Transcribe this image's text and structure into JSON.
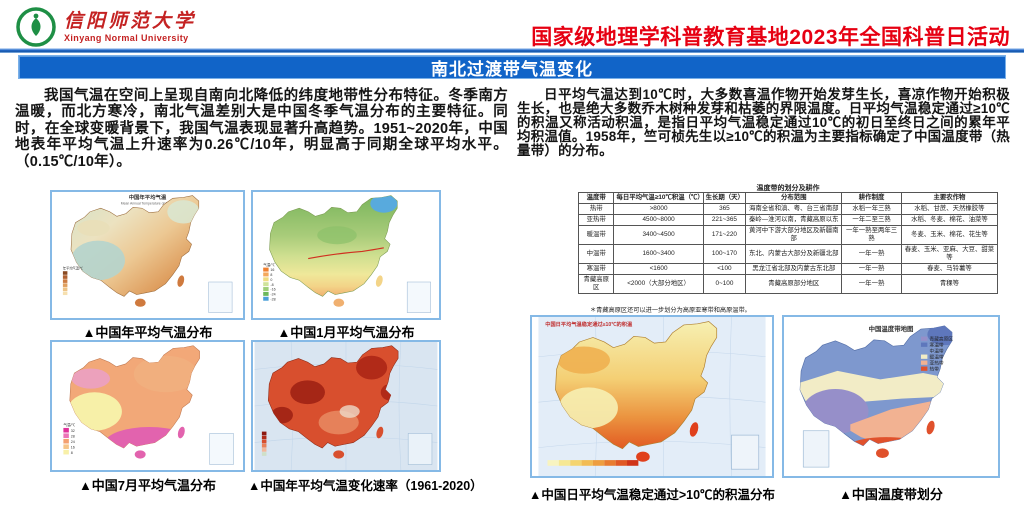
{
  "header": {
    "university_cn": "信阳师范大学",
    "university_en": "Xinyang Normal University",
    "event_title": "国家级地理学科普教育基地2023年全国科普日活动"
  },
  "title_bar": {
    "title": "南北过渡带气温变化"
  },
  "colors": {
    "accent_blue": "#1164c8",
    "brand_red": "#e60012",
    "logo_green": "#1e8f45",
    "map_border_blue": "#85b9e6"
  },
  "left_column": {
    "paragraph": "我国气温在空间上呈现自南向北降低的纬度地带性分布特征。冬季南方温暖，而北方寒冷，南北气温差别大是中国冬季气温分布的主要特征。同时，在全球变暖背景下，我国气温表现显著升高趋势。1951~2020年，中国地表年平均气温上升速率为0.26℃/10年，明显高于同期全球平均水平。（0.15℃/10年）。"
  },
  "right_column": {
    "paragraph": "日平均气温达到10℃时，大多数喜温作物开始发芽生长，喜凉作物开始积极生长，也是绝大多数乔木树种发芽和枯萎的界限温度。日平均气温稳定通过≥10℃的积温又称活动积温，是指日平均气温稳定通过10℃的初日至终日之间的累年平均积温值。1958年，竺可桢先生以≥10℃的积温为主要指标确定了中国温度带（热量带）的分布。"
  },
  "maps": {
    "annual": {
      "title_cn": "中国年平均气温",
      "title_en": "Mean Annual Temperature of China",
      "caption": "▲中国年平均气温分布",
      "legend_title": "年平均气温/℃"
    },
    "january": {
      "caption": "▲中国1月平均气温分布",
      "legend_title": "气温/℃",
      "legend_values": [
        "16",
        "8",
        "0",
        "-8",
        "-16",
        "-24",
        "-28"
      ],
      "legend_colors": [
        "#f08030",
        "#f4a85c",
        "#f0dc82",
        "#cfe39a",
        "#9ecf78",
        "#6cb85c",
        "#4ba0d8"
      ]
    },
    "july": {
      "caption": "▲中国7月平均气温分布",
      "legend_title": "气温/℃",
      "legend_values": [
        "32",
        "28",
        "24",
        "16",
        "8"
      ],
      "legend_colors": [
        "#e0309a",
        "#ec74b8",
        "#f4a070",
        "#f6c488",
        "#f8f0a8"
      ]
    },
    "trend": {
      "caption": "▲中国年平均气温变化速率（1961-2020）"
    },
    "accum": {
      "title": "中国日平均气温稳定通过≥10℃的积温",
      "caption": "▲中国日平均气温稳定通过>10℃的积温分布"
    },
    "zones": {
      "title": "中国温度带地图",
      "caption": "▲中国温度带划分",
      "legend": [
        "青藏高原区",
        "寒温带",
        "中温带",
        "暖温带",
        "亚热带",
        "热带"
      ],
      "legend_colors": [
        "#968fc9",
        "#5e77bc",
        "#7e98ce",
        "#f2ecc6",
        "#f2b292",
        "#e0512c"
      ]
    }
  },
  "table": {
    "title": "温度带的划分及耕作",
    "headers": [
      "温度带",
      "每日平均气温≥10℃积温（℃）",
      "生长期（天）",
      "分布范围",
      "耕作制度",
      "主要农作物"
    ],
    "rows": [
      [
        "热带",
        ">8000",
        "365",
        "海南全省和滇、粤、台三省南部",
        "水稻一年三熟",
        "水稻、甘蔗、天然橡胶等"
      ],
      [
        "亚热带",
        "4500~8000",
        "221~365",
        "秦岭—淮河以南，青藏高原以东",
        "一年二至三熟",
        "水稻、冬麦、棉花、油菜等"
      ],
      [
        "暖温带",
        "3400~4500",
        "171~220",
        "黄河中下游大部分地区及新疆南部",
        "一年一熟至两年三熟",
        "冬麦、玉米、棉花、花生等"
      ],
      [
        "中温带",
        "1600~3400",
        "100~170",
        "东北、内蒙古大部分及新疆北部",
        "一年一熟",
        "春麦、玉米、亚麻、大豆、甜菜等"
      ],
      [
        "寒温带",
        "<1600",
        "<100",
        "黑龙江省北部及内蒙古东北部",
        "一年一熟",
        "春麦、马铃薯等"
      ],
      [
        "青藏高原区",
        "<2000（大部分地区）",
        "0~100",
        "青藏高原部分地区",
        "一年一熟",
        "青稞等"
      ]
    ],
    "note": "＊青藏高原区还可以进一步划分为高原亚寒带和高原温带。"
  }
}
